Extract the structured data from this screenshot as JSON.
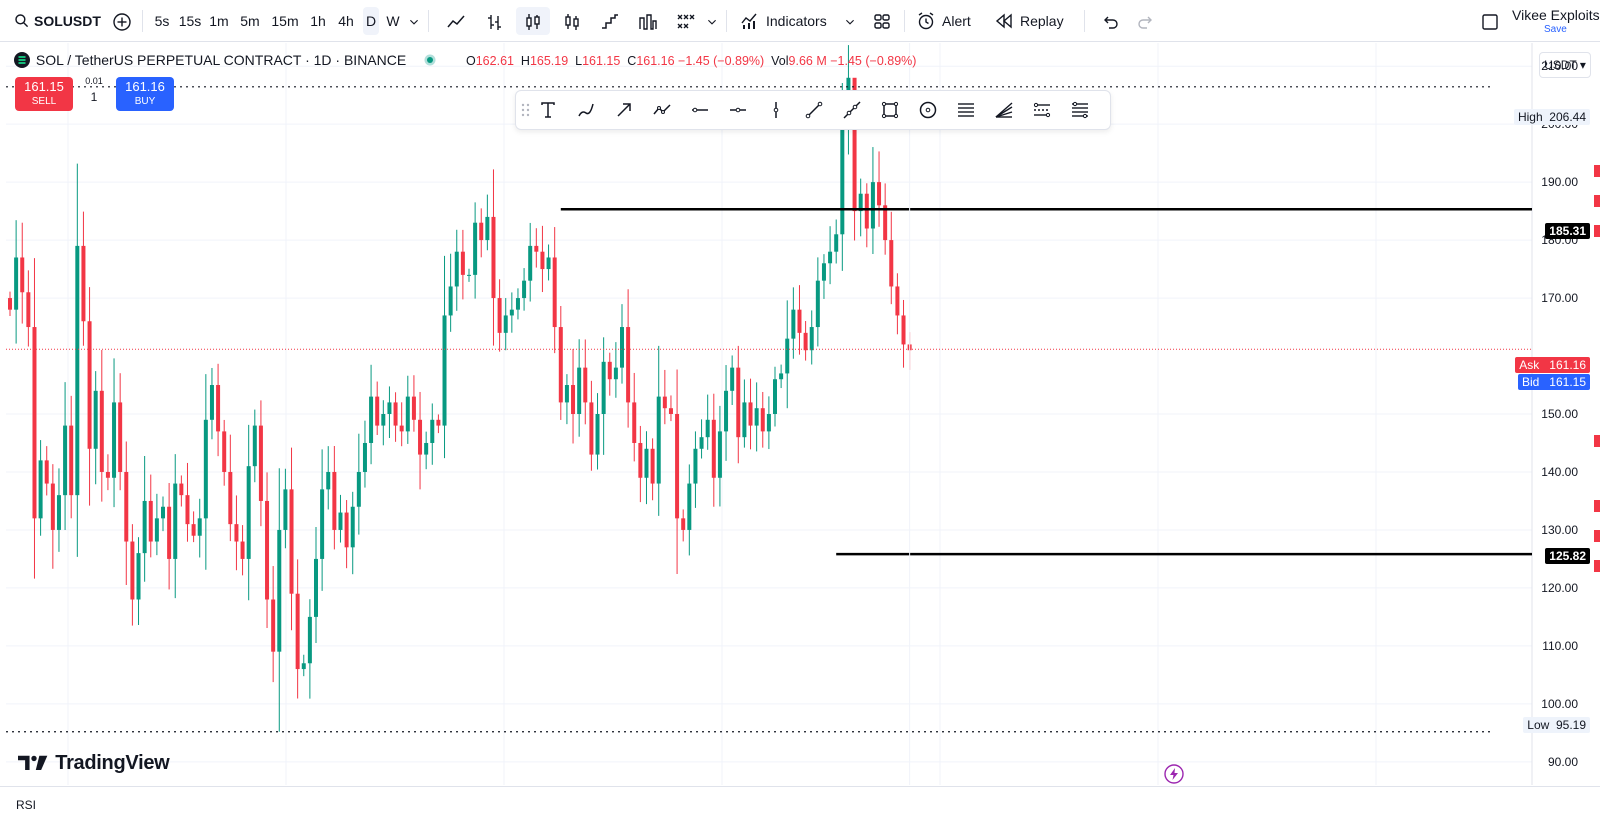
{
  "toolbar": {
    "symbol": "SOLUSDT",
    "intervals": [
      "5s",
      "15s",
      "1m",
      "5m",
      "15m",
      "1h",
      "4h",
      "D",
      "W"
    ],
    "active_interval": "D",
    "indicators_label": "Indicators",
    "alert_label": "Alert",
    "replay_label": "Replay",
    "user_name": "Vikee Exploits",
    "save_label": "Save"
  },
  "legend": {
    "title": "SOL / TetherUS PERPETUAL CONTRACT · 1D · BINANCE",
    "o_label": "O",
    "o": "162.61",
    "h_label": "H",
    "h": "165.19",
    "l_label": "L",
    "l": "161.15",
    "c_label": "C",
    "c": "161.16",
    "change": "−1.45 (−0.89%)",
    "vol_label": "Vol",
    "vol": "9.66 M",
    "vol_change": "−1.45 (−0.89%)"
  },
  "trade": {
    "sell_price": "161.15",
    "sell_label": "SELL",
    "buy_price": "161.16",
    "buy_label": "BUY",
    "qty_step": "0.01",
    "qty": "1"
  },
  "price_scale": {
    "currency": "USDT",
    "ticks": [
      "210.00",
      "200.00",
      "190.00",
      "180.00",
      "170.00",
      "150.00",
      "140.00",
      "130.00",
      "120.00",
      "110.00",
      "100.00",
      "90.00"
    ],
    "high_label": "High",
    "high": "206.44",
    "low_label": "Low",
    "low": "95.19",
    "ask_label": "Ask",
    "ask": "161.16",
    "bid_label": "Bid",
    "bid": "161.15",
    "line_top": "185.31",
    "line_bottom": "125.82"
  },
  "chart_data": {
    "type": "candlestick",
    "ylim": [
      86,
      214
    ],
    "closes": [
      168,
      177,
      171,
      165,
      132,
      142,
      138,
      130,
      136,
      148,
      136,
      179,
      166,
      144,
      154,
      140,
      139,
      152,
      140,
      128,
      118,
      126,
      135,
      128,
      132,
      134,
      125,
      138,
      136,
      131,
      129,
      132,
      149,
      155,
      147,
      140,
      131,
      128,
      125,
      141,
      148,
      135,
      118,
      109,
      130,
      137,
      119,
      106,
      107,
      115,
      125,
      137,
      140,
      130,
      133,
      127,
      134,
      140,
      145,
      153,
      148,
      150,
      152,
      148,
      147,
      153,
      149,
      143,
      145,
      149,
      148,
      167,
      172,
      178,
      174,
      174,
      183,
      180,
      184,
      170,
      164,
      167,
      168,
      170,
      173,
      179,
      178,
      175,
      177,
      165,
      152,
      155,
      150,
      158,
      152,
      143,
      150,
      159,
      156,
      158,
      165,
      152,
      145,
      139,
      144,
      138,
      153,
      151,
      150,
      132,
      130,
      138,
      144,
      146,
      149,
      139,
      147,
      154,
      158,
      146,
      152,
      148,
      151,
      147,
      150,
      156,
      157,
      163,
      168,
      164,
      161,
      165,
      173,
      176,
      178,
      181,
      199,
      208,
      185,
      188,
      182,
      190,
      186,
      180,
      172,
      167,
      162,
      161
    ],
    "colors": {
      "up": "#089981",
      "down": "#f23645",
      "level_line": "#000000",
      "ask": "#f23645",
      "bid": "#2962ff"
    }
  },
  "watermark": "TradingView",
  "rsi_label": "RSI"
}
